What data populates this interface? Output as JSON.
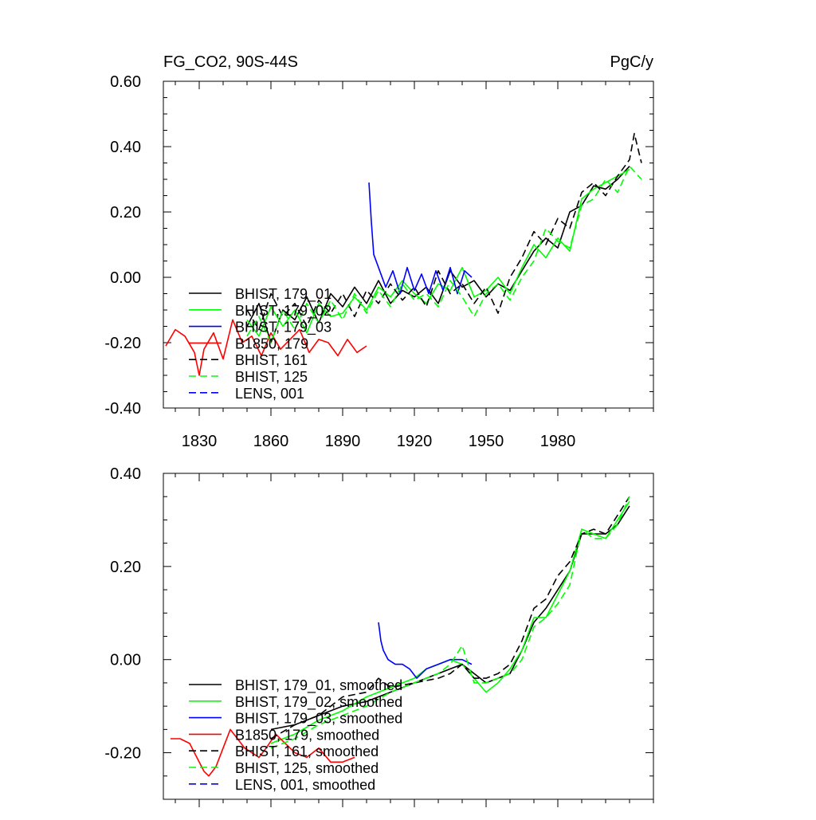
{
  "chart_data": [
    {
      "type": "line",
      "title_left": "FG_CO2, 90S-44S",
      "title_right": "PgC/y",
      "xlim": [
        1815,
        2020
      ],
      "ylim": [
        -0.4,
        0.6
      ],
      "yticks": [
        -0.4,
        -0.2,
        0.0,
        0.2,
        0.4,
        0.6
      ],
      "ytick_labels": [
        "-0.40",
        "-0.20",
        "0.00",
        "0.20",
        "0.40",
        "0.60"
      ],
      "xticks": [
        1830,
        1860,
        1890,
        1920,
        1950,
        1980
      ],
      "xtick_labels": [
        "1830",
        "1860",
        "1890",
        "1920",
        "1950",
        "1980"
      ],
      "legend_position": "lower-left",
      "series": [
        {
          "name": "BHIST, 179_01",
          "color": "#000000",
          "dash": "solid",
          "x": [
            1850,
            1855,
            1860,
            1865,
            1870,
            1875,
            1880,
            1885,
            1890,
            1895,
            1900,
            1905,
            1910,
            1915,
            1920,
            1925,
            1930,
            1935,
            1940,
            1945,
            1950,
            1955,
            1960,
            1965,
            1970,
            1975,
            1980,
            1985,
            1990,
            1995,
            2000,
            2005,
            2010
          ],
          "y": [
            -0.15,
            -0.08,
            -0.2,
            -0.1,
            -0.13,
            -0.06,
            -0.14,
            -0.05,
            -0.09,
            -0.03,
            -0.08,
            -0.01,
            -0.08,
            -0.04,
            -0.06,
            -0.03,
            -0.08,
            0.02,
            -0.03,
            -0.01,
            -0.06,
            -0.02,
            -0.04,
            0.02,
            0.08,
            0.12,
            0.09,
            0.2,
            0.22,
            0.28,
            0.27,
            0.3,
            0.34
          ]
        },
        {
          "name": "BHIST, 179_02",
          "color": "#00ff00",
          "dash": "solid",
          "x": [
            1850,
            1855,
            1860,
            1865,
            1870,
            1875,
            1880,
            1885,
            1890,
            1895,
            1900,
            1905,
            1910,
            1915,
            1920,
            1925,
            1930,
            1935,
            1940,
            1945,
            1950,
            1955,
            1960,
            1965,
            1970,
            1975,
            1980,
            1985,
            1990,
            1995,
            2000,
            2005,
            2010
          ],
          "y": [
            -0.13,
            -0.18,
            -0.09,
            -0.15,
            -0.1,
            -0.17,
            -0.08,
            -0.12,
            -0.11,
            -0.06,
            -0.1,
            -0.03,
            -0.06,
            -0.01,
            -0.05,
            -0.08,
            -0.02,
            -0.04,
            0.03,
            -0.06,
            -0.04,
            0.0,
            -0.05,
            0.03,
            0.1,
            0.06,
            0.12,
            0.08,
            0.24,
            0.27,
            0.29,
            0.31,
            0.33
          ]
        },
        {
          "name": "BHIST, 179_03",
          "color": "#0000ff",
          "dash": "solid",
          "x": [
            1901,
            1902,
            1903,
            1905,
            1908,
            1911,
            1914,
            1917,
            1920,
            1923,
            1926,
            1929,
            1932,
            1935,
            1938,
            1941,
            1944
          ],
          "y": [
            0.29,
            0.17,
            0.07,
            0.03,
            -0.03,
            0.02,
            -0.05,
            0.03,
            -0.04,
            0.01,
            -0.05,
            0.02,
            -0.04,
            0.03,
            -0.05,
            0.02,
            0.0
          ]
        },
        {
          "name": "B1850, 179",
          "color": "#ff0000",
          "dash": "solid",
          "x": [
            1816,
            1820,
            1824,
            1828,
            1830,
            1832,
            1836,
            1840,
            1844,
            1848,
            1852,
            1856,
            1860,
            1864,
            1868,
            1872,
            1876,
            1880,
            1884,
            1888,
            1892,
            1896,
            1900
          ],
          "y": [
            -0.21,
            -0.16,
            -0.18,
            -0.23,
            -0.3,
            -0.22,
            -0.17,
            -0.25,
            -0.13,
            -0.2,
            -0.18,
            -0.24,
            -0.17,
            -0.22,
            -0.19,
            -0.16,
            -0.23,
            -0.19,
            -0.2,
            -0.24,
            -0.19,
            -0.23,
            -0.21
          ]
        },
        {
          "name": "BHIST, 161",
          "color": "#000000",
          "dash": "dashed",
          "x": [
            1850,
            1855,
            1860,
            1865,
            1870,
            1875,
            1880,
            1885,
            1890,
            1895,
            1900,
            1905,
            1910,
            1915,
            1920,
            1925,
            1930,
            1935,
            1940,
            1945,
            1950,
            1955,
            1960,
            1965,
            1970,
            1975,
            1980,
            1985,
            1990,
            1995,
            2000,
            2005,
            2010,
            2012,
            2015
          ],
          "y": [
            -0.1,
            -0.16,
            -0.05,
            -0.12,
            -0.08,
            -0.15,
            -0.07,
            -0.11,
            -0.05,
            -0.12,
            -0.04,
            -0.08,
            -0.02,
            -0.07,
            -0.03,
            -0.09,
            0.02,
            -0.05,
            -0.02,
            -0.08,
            -0.03,
            -0.11,
            0.0,
            0.06,
            0.14,
            0.1,
            0.18,
            0.15,
            0.26,
            0.29,
            0.25,
            0.31,
            0.36,
            0.44,
            0.35
          ]
        },
        {
          "name": "BHIST, 125",
          "color": "#00ff00",
          "dash": "dashed",
          "x": [
            1850,
            1855,
            1860,
            1865,
            1870,
            1875,
            1880,
            1885,
            1890,
            1895,
            1900,
            1905,
            1910,
            1915,
            1920,
            1925,
            1930,
            1935,
            1940,
            1945,
            1950,
            1955,
            1960,
            1965,
            1970,
            1975,
            1980,
            1985,
            1990,
            1995,
            2000,
            2005,
            2010,
            2015
          ],
          "y": [
            -0.18,
            -0.12,
            -0.2,
            -0.1,
            -0.16,
            -0.08,
            -0.14,
            -0.07,
            -0.13,
            -0.05,
            -0.11,
            -0.04,
            -0.09,
            -0.02,
            -0.07,
            -0.05,
            -0.09,
            -0.01,
            -0.06,
            -0.12,
            -0.05,
            -0.02,
            -0.07,
            0.0,
            0.05,
            0.15,
            0.11,
            0.09,
            0.22,
            0.24,
            0.3,
            0.26,
            0.34,
            0.3
          ]
        },
        {
          "name": "LENS, 001",
          "color": "#0000ff",
          "dash": "dashed",
          "x": [],
          "y": []
        }
      ]
    },
    {
      "type": "line",
      "xlim": [
        1815,
        2020
      ],
      "ylim": [
        -0.3,
        0.4
      ],
      "yticks": [
        -0.2,
        0.0,
        0.2,
        0.4
      ],
      "ytick_labels": [
        "-0.20",
        "0.00",
        "0.20",
        "0.40"
      ],
      "xticks": [
        1830,
        1860,
        1890,
        1920,
        1950,
        1980
      ],
      "xtick_labels": [],
      "legend_position": "lower-left",
      "series": [
        {
          "name": "BHIST, 179_01, smoothed",
          "color": "#000000",
          "dash": "solid",
          "x": [
            1860,
            1870,
            1880,
            1890,
            1900,
            1910,
            1920,
            1930,
            1935,
            1940,
            1945,
            1950,
            1955,
            1960,
            1965,
            1970,
            1975,
            1980,
            1985,
            1990,
            1995,
            2000,
            2005,
            2010
          ],
          "y": [
            -0.15,
            -0.14,
            -0.12,
            -0.1,
            -0.09,
            -0.07,
            -0.05,
            -0.03,
            -0.02,
            -0.01,
            -0.03,
            -0.05,
            -0.04,
            -0.03,
            0.02,
            0.08,
            0.11,
            0.15,
            0.19,
            0.27,
            0.27,
            0.27,
            0.29,
            0.33
          ]
        },
        {
          "name": "BHIST, 179_02, smoothed",
          "color": "#00ff00",
          "dash": "solid",
          "x": [
            1860,
            1870,
            1880,
            1890,
            1900,
            1910,
            1920,
            1925,
            1930,
            1935,
            1940,
            1945,
            1950,
            1955,
            1960,
            1965,
            1970,
            1975,
            1980,
            1985,
            1990,
            1995,
            2000,
            2005,
            2010
          ],
          "y": [
            -0.18,
            -0.16,
            -0.13,
            -0.11,
            -0.08,
            -0.06,
            -0.04,
            -0.02,
            -0.01,
            0.0,
            -0.01,
            -0.04,
            -0.07,
            -0.05,
            -0.02,
            0.02,
            0.09,
            0.09,
            0.14,
            0.19,
            0.28,
            0.27,
            0.26,
            0.3,
            0.34
          ]
        },
        {
          "name": "BHIST, 179_03, smoothed",
          "color": "#0000ff",
          "dash": "solid",
          "x": [
            1905,
            1906,
            1907,
            1909,
            1912,
            1915,
            1918,
            1921,
            1925,
            1930,
            1935,
            1940,
            1944
          ],
          "y": [
            0.08,
            0.04,
            0.02,
            0.0,
            -0.01,
            -0.01,
            -0.02,
            -0.04,
            -0.02,
            -0.01,
            0.0,
            0.0,
            -0.01
          ]
        },
        {
          "name": "B1850, 179, smoothed",
          "color": "#ff0000",
          "dash": "solid",
          "x": [
            1818,
            1822,
            1826,
            1828,
            1830,
            1832,
            1834,
            1837,
            1840,
            1843,
            1846,
            1849,
            1852,
            1855,
            1858,
            1862,
            1866,
            1870,
            1875,
            1880,
            1885,
            1890,
            1895
          ],
          "y": [
            -0.17,
            -0.17,
            -0.18,
            -0.2,
            -0.22,
            -0.24,
            -0.25,
            -0.23,
            -0.19,
            -0.15,
            -0.17,
            -0.19,
            -0.2,
            -0.21,
            -0.19,
            -0.16,
            -0.18,
            -0.2,
            -0.21,
            -0.19,
            -0.22,
            -0.22,
            -0.21
          ]
        },
        {
          "name": "BHIST, 161, smoothed",
          "color": "#000000",
          "dash": "dashed",
          "x": [
            1860,
            1870,
            1880,
            1890,
            1900,
            1905,
            1910,
            1920,
            1930,
            1935,
            1940,
            1945,
            1950,
            1955,
            1960,
            1965,
            1970,
            1975,
            1980,
            1985,
            1990,
            1995,
            2000,
            2005,
            2010
          ],
          "y": [
            -0.17,
            -0.14,
            -0.12,
            -0.08,
            -0.07,
            -0.04,
            -0.06,
            -0.05,
            -0.04,
            -0.03,
            -0.01,
            -0.04,
            -0.04,
            -0.03,
            -0.01,
            0.04,
            0.11,
            0.13,
            0.18,
            0.21,
            0.27,
            0.28,
            0.27,
            0.31,
            0.35
          ]
        },
        {
          "name": "BHIST, 125, smoothed",
          "color": "#00ff00",
          "dash": "dashed",
          "x": [
            1860,
            1870,
            1880,
            1890,
            1900,
            1910,
            1920,
            1930,
            1935,
            1940,
            1945,
            1950,
            1955,
            1960,
            1965,
            1970,
            1975,
            1980,
            1985,
            1990,
            1995,
            2000,
            2005,
            2010
          ],
          "y": [
            -0.19,
            -0.17,
            -0.14,
            -0.12,
            -0.1,
            -0.07,
            -0.05,
            -0.03,
            -0.01,
            0.03,
            -0.05,
            -0.05,
            -0.04,
            -0.03,
            0.0,
            0.07,
            0.09,
            0.12,
            0.16,
            0.28,
            0.26,
            0.26,
            0.29,
            0.35
          ]
        },
        {
          "name": "LENS, 001, smoothed",
          "color": "#0000ff",
          "dash": "dashed",
          "x": [],
          "y": []
        }
      ]
    }
  ]
}
